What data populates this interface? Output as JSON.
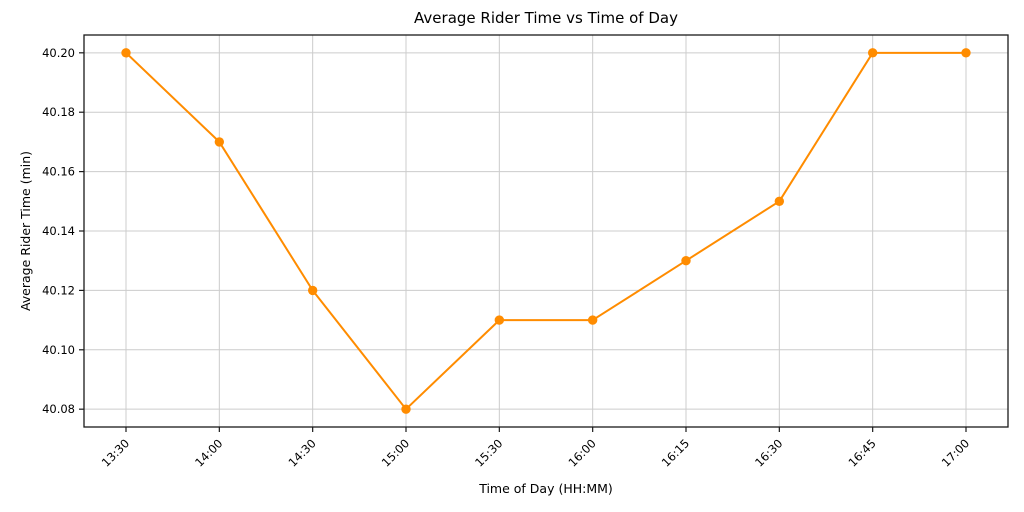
{
  "chart_data": {
    "type": "line",
    "title": "Average Rider Time vs Time of Day",
    "xlabel": "Time of Day (HH:MM)",
    "ylabel": "Average Rider Time (min)",
    "categories": [
      "13:30",
      "14:00",
      "14:30",
      "15:00",
      "15:30",
      "16:00",
      "16:15",
      "16:30",
      "16:45",
      "17:00"
    ],
    "values": [
      40.2,
      40.17,
      40.12,
      40.08,
      40.11,
      40.11,
      40.13,
      40.15,
      40.2,
      40.2
    ],
    "yticks": [
      40.08,
      40.1,
      40.12,
      40.14,
      40.16,
      40.18,
      40.2
    ],
    "ytick_labels": [
      "40.08",
      "40.10",
      "40.12",
      "40.14",
      "40.16",
      "40.18",
      "40.20"
    ],
    "ylim": [
      40.074,
      40.206
    ],
    "grid": true,
    "legend": null,
    "xtick_rotation_deg": 45,
    "colors": {
      "line": "#ff8c00",
      "marker": "#ff8c00",
      "grid": "#cccccc",
      "spine": "#1a1a1a",
      "text": "#000000",
      "background": "#ffffff"
    }
  }
}
